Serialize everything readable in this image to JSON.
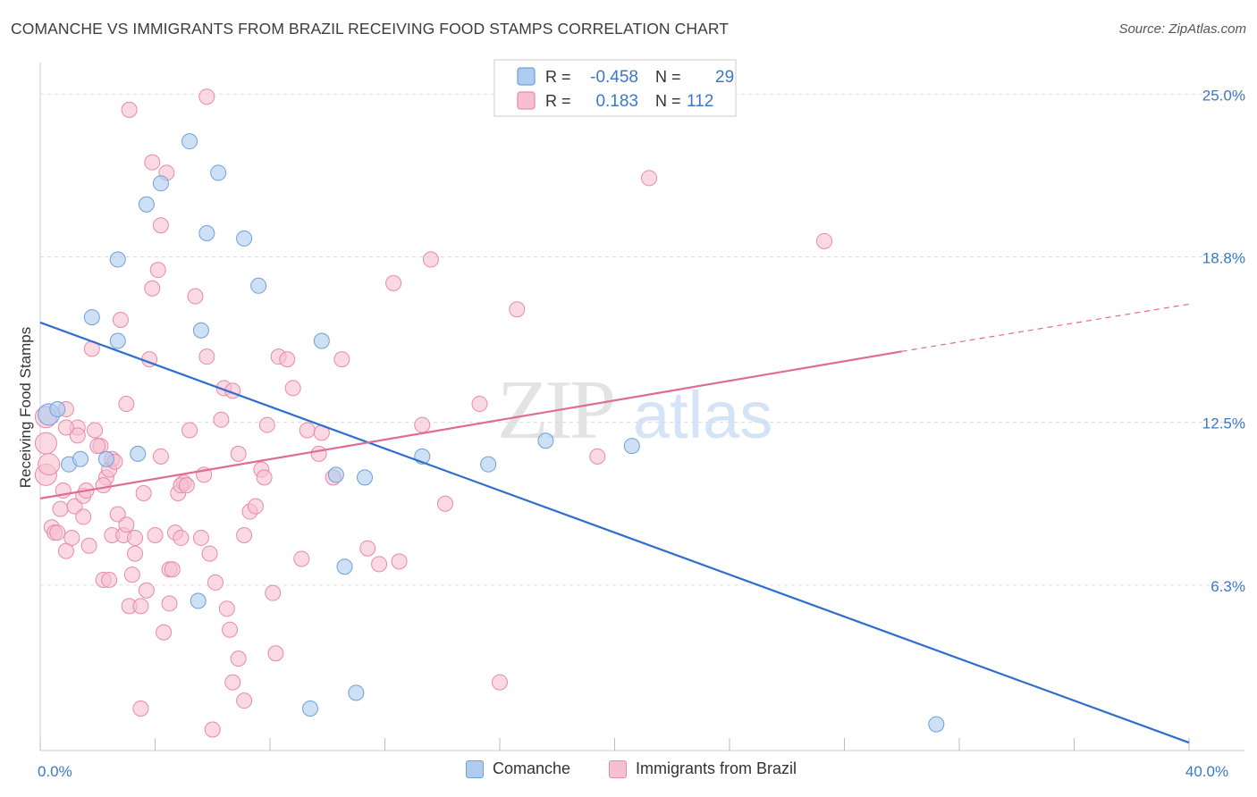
{
  "title": "COMANCHE VS IMMIGRANTS FROM BRAZIL RECEIVING FOOD STAMPS CORRELATION CHART",
  "source": "Source: ZipAtlas.com",
  "watermark": {
    "zip": "ZIP",
    "atlas": "atlas"
  },
  "colors": {
    "comanche_fill": "#aecbf0",
    "comanche_stroke": "#6f9fd8",
    "comanche_line": "#2e6fce",
    "brazil_fill": "#f7bfd0",
    "brazil_stroke": "#e88aa8",
    "brazil_line": "#e06b93",
    "grid": "#dddddd",
    "tick_label": "#3a78c8"
  },
  "chart_data": {
    "type": "scatter",
    "xlabel": "",
    "ylabel": "Receiving Food Stamps",
    "xlim": [
      0,
      40
    ],
    "ylim": [
      0,
      26.2
    ],
    "x_tick_labels": [
      {
        "value": 0,
        "label": "0.0%"
      },
      {
        "value": 40,
        "label": "40.0%"
      }
    ],
    "y_tick_labels": [
      {
        "value": 6.3,
        "label": "6.3%"
      },
      {
        "value": 12.5,
        "label": "12.5%"
      },
      {
        "value": 18.8,
        "label": "18.8%"
      },
      {
        "value": 25.0,
        "label": "25.0%"
      }
    ],
    "x_minor_ticks": [
      0,
      4,
      8,
      12,
      16,
      20,
      24,
      28,
      32,
      36,
      40
    ],
    "grid": "horizontal dashed",
    "legend": {
      "placement": "top-center",
      "rows": [
        {
          "r_label": "R =",
          "r_value": "-0.458",
          "n_label": "N =",
          "n_value": "29"
        },
        {
          "r_label": "R =",
          "r_value": "0.183",
          "n_label": "N =",
          "n_value": "112"
        }
      ]
    },
    "series": [
      {
        "name": "Comanche",
        "points": [
          [
            0.3,
            12.8
          ],
          [
            0.6,
            13.0
          ],
          [
            1.0,
            10.9
          ],
          [
            1.4,
            11.1
          ],
          [
            1.8,
            16.5
          ],
          [
            2.3,
            11.1
          ],
          [
            2.7,
            18.7
          ],
          [
            2.7,
            15.6
          ],
          [
            3.4,
            11.3
          ],
          [
            3.7,
            20.8
          ],
          [
            4.2,
            21.6
          ],
          [
            5.2,
            23.2
          ],
          [
            5.5,
            5.7
          ],
          [
            5.6,
            16.0
          ],
          [
            5.8,
            19.7
          ],
          [
            6.2,
            22.0
          ],
          [
            7.1,
            19.5
          ],
          [
            7.6,
            17.7
          ],
          [
            9.4,
            1.6
          ],
          [
            9.8,
            15.6
          ],
          [
            10.3,
            10.5
          ],
          [
            10.6,
            7.0
          ],
          [
            11.0,
            2.2
          ],
          [
            11.3,
            10.4
          ],
          [
            13.3,
            11.2
          ],
          [
            15.6,
            10.9
          ],
          [
            17.6,
            11.8
          ],
          [
            20.6,
            11.6
          ],
          [
            31.2,
            1.0
          ]
        ],
        "trend": {
          "x": [
            0,
            40
          ],
          "y": [
            16.3,
            0.3
          ],
          "style": "solid"
        }
      },
      {
        "name": "Immigrants from Brazil",
        "points": [
          [
            0.2,
            12.7
          ],
          [
            0.2,
            11.7
          ],
          [
            0.2,
            10.5
          ],
          [
            0.3,
            10.9
          ],
          [
            0.4,
            8.5
          ],
          [
            0.5,
            8.3
          ],
          [
            0.6,
            8.3
          ],
          [
            0.7,
            9.2
          ],
          [
            0.8,
            9.9
          ],
          [
            0.9,
            7.6
          ],
          [
            0.9,
            13.0
          ],
          [
            1.1,
            8.1
          ],
          [
            1.2,
            9.3
          ],
          [
            1.3,
            12.3
          ],
          [
            1.3,
            12.0
          ],
          [
            1.5,
            9.7
          ],
          [
            1.6,
            9.9
          ],
          [
            1.7,
            7.8
          ],
          [
            1.8,
            15.3
          ],
          [
            1.9,
            12.2
          ],
          [
            2.1,
            11.6
          ],
          [
            2.2,
            6.5
          ],
          [
            2.3,
            10.4
          ],
          [
            2.4,
            10.7
          ],
          [
            2.4,
            6.5
          ],
          [
            2.5,
            11.1
          ],
          [
            2.5,
            8.2
          ],
          [
            2.6,
            11.0
          ],
          [
            2.7,
            9.0
          ],
          [
            2.8,
            16.4
          ],
          [
            2.9,
            8.2
          ],
          [
            3.0,
            13.2
          ],
          [
            3.0,
            8.6
          ],
          [
            3.1,
            24.4
          ],
          [
            3.1,
            5.5
          ],
          [
            3.2,
            6.7
          ],
          [
            3.3,
            7.5
          ],
          [
            3.5,
            1.6
          ],
          [
            3.5,
            5.5
          ],
          [
            3.6,
            9.8
          ],
          [
            3.7,
            6.1
          ],
          [
            3.8,
            14.9
          ],
          [
            3.9,
            17.6
          ],
          [
            3.9,
            22.4
          ],
          [
            4.0,
            8.2
          ],
          [
            4.1,
            18.3
          ],
          [
            4.2,
            11.2
          ],
          [
            4.2,
            20.0
          ],
          [
            4.3,
            4.5
          ],
          [
            4.4,
            22.0
          ],
          [
            4.5,
            6.9
          ],
          [
            4.5,
            5.6
          ],
          [
            4.6,
            6.9
          ],
          [
            4.7,
            8.3
          ],
          [
            4.8,
            9.8
          ],
          [
            4.9,
            8.1
          ],
          [
            5.0,
            10.2
          ],
          [
            5.2,
            12.2
          ],
          [
            5.4,
            17.3
          ],
          [
            5.6,
            8.1
          ],
          [
            5.7,
            10.5
          ],
          [
            5.8,
            15.0
          ],
          [
            5.8,
            24.9
          ],
          [
            5.9,
            7.5
          ],
          [
            6.0,
            0.8
          ],
          [
            6.1,
            6.4
          ],
          [
            6.3,
            12.6
          ],
          [
            6.4,
            13.8
          ],
          [
            6.5,
            5.4
          ],
          [
            6.6,
            4.6
          ],
          [
            6.7,
            2.6
          ],
          [
            6.9,
            11.3
          ],
          [
            6.9,
            3.5
          ],
          [
            7.1,
            8.2
          ],
          [
            7.1,
            1.9
          ],
          [
            7.3,
            9.1
          ],
          [
            7.5,
            9.3
          ],
          [
            7.7,
            10.7
          ],
          [
            7.8,
            10.4
          ],
          [
            7.9,
            12.4
          ],
          [
            8.1,
            6.0
          ],
          [
            8.2,
            3.7
          ],
          [
            8.3,
            15.0
          ],
          [
            8.6,
            14.9
          ],
          [
            8.8,
            13.8
          ],
          [
            9.1,
            7.3
          ],
          [
            9.3,
            12.2
          ],
          [
            9.7,
            11.3
          ],
          [
            9.8,
            12.1
          ],
          [
            10.2,
            10.4
          ],
          [
            10.5,
            14.9
          ],
          [
            11.4,
            7.7
          ],
          [
            11.8,
            7.1
          ],
          [
            12.3,
            17.8
          ],
          [
            12.5,
            7.2
          ],
          [
            13.3,
            12.4
          ],
          [
            13.6,
            18.7
          ],
          [
            14.1,
            9.4
          ],
          [
            15.3,
            13.2
          ],
          [
            16.0,
            2.6
          ],
          [
            16.6,
            16.8
          ],
          [
            19.4,
            11.2
          ],
          [
            21.2,
            21.8
          ],
          [
            27.3,
            19.4
          ],
          [
            2.0,
            11.6
          ],
          [
            4.9,
            10.1
          ],
          [
            5.1,
            10.1
          ],
          [
            6.7,
            13.7
          ],
          [
            0.9,
            12.3
          ],
          [
            1.5,
            8.9
          ],
          [
            3.3,
            8.1
          ],
          [
            2.2,
            10.1
          ]
        ],
        "trend": {
          "x": [
            0,
            30.0
          ],
          "y": [
            9.6,
            15.2
          ],
          "style": "solid"
        },
        "trend_extension": {
          "x": [
            30.0,
            40
          ],
          "y": [
            15.2,
            17.0
          ],
          "style": "dashed"
        }
      }
    ]
  }
}
